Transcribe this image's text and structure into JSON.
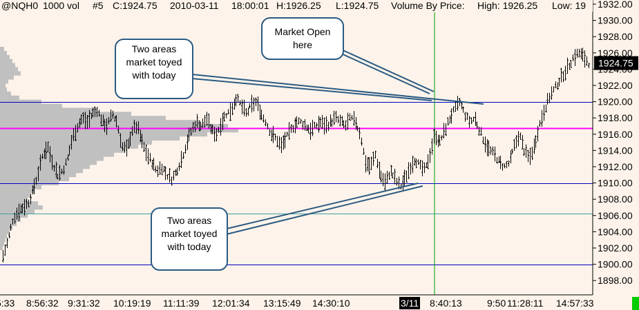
{
  "header": {
    "symbol": "@NQH0",
    "bar_interval": "1000 vol",
    "bar_number": "#5",
    "close": "C:1924.75",
    "date": "2010-03-11",
    "time": "18:00:01",
    "high": "H:1926.25",
    "low": "L:1924.75",
    "study": "Volume By Price:",
    "study_high": "High: 1926.25",
    "study_low": "Low: 19"
  },
  "price_axis": {
    "ticks": [
      "1932.00",
      "1930.00",
      "1928.00",
      "1926.00",
      "1924.00",
      "1922.00",
      "1920.00",
      "1918.00",
      "1916.00",
      "1914.00",
      "1912.00",
      "1910.00",
      "1908.00",
      "1906.00",
      "1904.00",
      "1902.00",
      "1900.00",
      "1898.00"
    ],
    "last_price_label": "1924.75"
  },
  "time_axis": {
    "labels": [
      "5:33",
      "8:56:32",
      "9:31:32",
      "10:19:19",
      "11:11:39",
      "12:01:34",
      "13:15:49",
      "14:30:10",
      "3/11",
      "8:40:13",
      "9:50",
      "11:28:11",
      "14:57:33"
    ]
  },
  "annotations": {
    "top_left": "Two areas market toyed with today",
    "market_open": "Market Open here",
    "bottom": "Two areas market toyed with today"
  },
  "colors": {
    "background": "#fdf3ea",
    "bars": "#000000",
    "volume_profile": "#c0c0c0",
    "poc_line": "#ff00ff",
    "level_line": "#0000c0",
    "teal_line": "#40a0a0",
    "session_line": "#00a000",
    "callout_border": "#2a5a82",
    "last_price_bg": "#000000",
    "status_square": "#00cc00"
  },
  "chart_data": {
    "type": "candlestick",
    "ylim": [
      1897,
      1933
    ],
    "y_tick_step": 2,
    "horizontal_levels": [
      {
        "price": 1920.0,
        "color": "#0000c0"
      },
      {
        "price": 1916.75,
        "color": "#ff00ff"
      },
      {
        "price": 1910.0,
        "color": "#0000c0"
      },
      {
        "price": 1906.25,
        "color": "#40a0a0"
      },
      {
        "price": 1900.0,
        "color": "#0000c0"
      }
    ],
    "session_break": "3/11",
    "last_price": 1924.75,
    "volume_profile": [
      {
        "price": 1926.5,
        "vol": 6
      },
      {
        "price": 1926.0,
        "vol": 10
      },
      {
        "price": 1925.5,
        "vol": 14
      },
      {
        "price": 1925.0,
        "vol": 18
      },
      {
        "price": 1924.5,
        "vol": 22
      },
      {
        "price": 1924.0,
        "vol": 26
      },
      {
        "price": 1923.5,
        "vol": 30
      },
      {
        "price": 1923.0,
        "vol": 20
      },
      {
        "price": 1922.5,
        "vol": 12
      },
      {
        "price": 1922.0,
        "vol": 8
      },
      {
        "price": 1921.5,
        "vol": 10
      },
      {
        "price": 1921.0,
        "vol": 16
      },
      {
        "price": 1920.5,
        "vol": 28
      },
      {
        "price": 1920.0,
        "vol": 60
      },
      {
        "price": 1919.5,
        "vol": 90
      },
      {
        "price": 1919.0,
        "vol": 140
      },
      {
        "price": 1918.5,
        "vol": 190
      },
      {
        "price": 1918.0,
        "vol": 240
      },
      {
        "price": 1917.5,
        "vol": 290
      },
      {
        "price": 1917.0,
        "vol": 330
      },
      {
        "price": 1916.5,
        "vol": 345
      },
      {
        "price": 1916.0,
        "vol": 300
      },
      {
        "price": 1915.5,
        "vol": 260
      },
      {
        "price": 1915.0,
        "vol": 220
      },
      {
        "price": 1914.5,
        "vol": 200
      },
      {
        "price": 1914.0,
        "vol": 180
      },
      {
        "price": 1913.5,
        "vol": 165
      },
      {
        "price": 1913.0,
        "vol": 150
      },
      {
        "price": 1912.5,
        "vol": 140
      },
      {
        "price": 1912.0,
        "vol": 130
      },
      {
        "price": 1911.5,
        "vol": 120
      },
      {
        "price": 1911.0,
        "vol": 110
      },
      {
        "price": 1910.5,
        "vol": 100
      },
      {
        "price": 1910.0,
        "vol": 85
      },
      {
        "price": 1909.5,
        "vol": 60
      },
      {
        "price": 1909.0,
        "vol": 50
      },
      {
        "price": 1908.5,
        "vol": 45
      },
      {
        "price": 1908.0,
        "vol": 40
      },
      {
        "price": 1907.5,
        "vol": 55
      },
      {
        "price": 1907.0,
        "vol": 62
      },
      {
        "price": 1906.5,
        "vol": 50
      },
      {
        "price": 1906.0,
        "vol": 40
      },
      {
        "price": 1905.5,
        "vol": 30
      },
      {
        "price": 1905.0,
        "vol": 24
      },
      {
        "price": 1904.5,
        "vol": 18
      },
      {
        "price": 1904.0,
        "vol": 14
      },
      {
        "price": 1903.5,
        "vol": 10
      },
      {
        "price": 1903.0,
        "vol": 8
      },
      {
        "price": 1902.5,
        "vol": 6
      },
      {
        "price": 1902.0,
        "vol": 4
      }
    ],
    "price_path": [
      1901,
      1903,
      1905.5,
      1906.5,
      1907,
      1907.5,
      1909,
      1911,
      1913.5,
      1914.5,
      1912.5,
      1911,
      1911.5,
      1913,
      1915.5,
      1917,
      1918,
      1917.5,
      1918.5,
      1919,
      1917.5,
      1917,
      1918.5,
      1917.5,
      1914.5,
      1914,
      1916.5,
      1917,
      1915,
      1913.5,
      1912.5,
      1911.5,
      1912,
      1911,
      1910.5,
      1911.5,
      1913,
      1915,
      1916.5,
      1917.5,
      1917,
      1918,
      1916.5,
      1916,
      1917.5,
      1918.5,
      1919,
      1920.5,
      1919.5,
      1918.5,
      1919.5,
      1920,
      1918.5,
      1917.5,
      1916,
      1915.5,
      1914.5,
      1915.5,
      1916.5,
      1917.5,
      1917.5,
      1917,
      1916.5,
      1917,
      1917.5,
      1917,
      1917.5,
      1918,
      1917.5,
      1917,
      1918,
      1917.5,
      1916,
      1912.5,
      1912,
      1913.5,
      1911,
      1910,
      1911.5,
      1910.5,
      1909.5,
      1910.5,
      1912,
      1913,
      1912,
      1911.5,
      1913.5,
      1916,
      1915,
      1916.5,
      1918,
      1919,
      1920,
      1918.5,
      1917.5,
      1918,
      1916.5,
      1915,
      1914,
      1913.5,
      1912.5,
      1912,
      1912.5,
      1914.5,
      1916,
      1914,
      1913,
      1914.5,
      1917,
      1919,
      1920.5,
      1921.5,
      1922.5,
      1923.5,
      1924.5,
      1925.5,
      1926,
      1925.5,
      1924.75
    ]
  }
}
